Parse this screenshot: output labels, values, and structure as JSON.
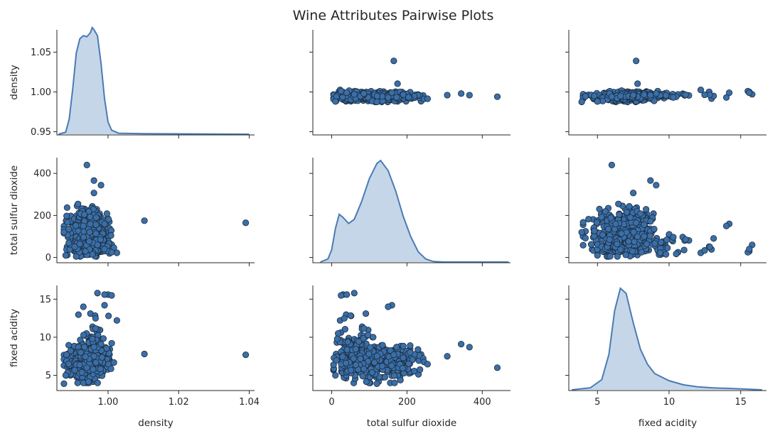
{
  "chart_data": {
    "type": "scatter",
    "title": "Wine Attributes Pairwise Plots",
    "variables": [
      "density",
      "total sulfur dioxide",
      "fixed acidity"
    ],
    "axis_labels": {
      "density": "density",
      "total sulfur dioxide": "total sulfur dioxide",
      "fixed acidity": "fixed acidity"
    },
    "ranges": {
      "density": [
        0.9855,
        1.0415
      ],
      "total sulfur dioxide": [
        -50,
        475
      ],
      "fixed acidity": [
        3.0,
        16.8
      ]
    },
    "x_ticks": {
      "density": [
        1.0,
        1.02,
        1.04
      ],
      "total sulfur dioxide": [
        0,
        200,
        400
      ],
      "fixed acidity": [
        5,
        10,
        15
      ]
    },
    "x_tick_labels": {
      "density": [
        "1.00",
        "1.02",
        "1.04"
      ],
      "total sulfur dioxide": [
        "0",
        "200",
        "400"
      ],
      "fixed acidity": [
        "5",
        "10",
        "15"
      ]
    },
    "y_ticks": {
      "density": [
        0.95,
        1.0,
        1.05
      ],
      "total sulfur dioxide": [
        0,
        200,
        400
      ],
      "fixed acidity": [
        5,
        10,
        15
      ]
    },
    "y_tick_labels": {
      "density": [
        "0.95",
        "1.00",
        "1.05"
      ],
      "total sulfur dioxide": [
        "0",
        "200",
        "400"
      ],
      "fixed acidity": [
        "5",
        "10",
        "15"
      ]
    },
    "y_limits": {
      "density": [
        0.946,
        1.078
      ],
      "total sulfur dioxide": [
        -25,
        475
      ],
      "fixed acidity": [
        3.0,
        16.8
      ]
    },
    "diag_kde": {
      "density": [
        [
          0.986,
          0.0
        ],
        [
          0.988,
          0.02
        ],
        [
          0.989,
          0.15
        ],
        [
          0.99,
          0.45
        ],
        [
          0.991,
          0.8
        ],
        [
          0.992,
          0.94
        ],
        [
          0.993,
          0.97
        ],
        [
          0.994,
          0.96
        ],
        [
          0.995,
          1.0
        ],
        [
          0.9955,
          1.05
        ],
        [
          0.996,
          1.03
        ],
        [
          0.997,
          0.97
        ],
        [
          0.998,
          0.7
        ],
        [
          0.999,
          0.35
        ],
        [
          1.0,
          0.12
        ],
        [
          1.001,
          0.04
        ],
        [
          1.003,
          0.01
        ],
        [
          1.01,
          0.005
        ],
        [
          1.04,
          0.0
        ]
      ],
      "total sulfur dioxide": [
        [
          -30,
          0.0
        ],
        [
          -10,
          0.03
        ],
        [
          0,
          0.12
        ],
        [
          10,
          0.33
        ],
        [
          20,
          0.47
        ],
        [
          30,
          0.44
        ],
        [
          45,
          0.38
        ],
        [
          60,
          0.42
        ],
        [
          80,
          0.6
        ],
        [
          100,
          0.82
        ],
        [
          120,
          0.97
        ],
        [
          130,
          1.0
        ],
        [
          150,
          0.9
        ],
        [
          170,
          0.7
        ],
        [
          190,
          0.45
        ],
        [
          210,
          0.25
        ],
        [
          230,
          0.1
        ],
        [
          250,
          0.03
        ],
        [
          270,
          0.005
        ],
        [
          300,
          0.0
        ],
        [
          470,
          0.0
        ]
      ],
      "fixed acidity": [
        [
          3.2,
          0.0
        ],
        [
          4.5,
          0.02
        ],
        [
          5.3,
          0.1
        ],
        [
          5.8,
          0.35
        ],
        [
          6.2,
          0.78
        ],
        [
          6.6,
          1.0
        ],
        [
          7.0,
          0.95
        ],
        [
          7.5,
          0.66
        ],
        [
          8.0,
          0.4
        ],
        [
          8.5,
          0.25
        ],
        [
          9.0,
          0.16
        ],
        [
          10.0,
          0.09
        ],
        [
          11.0,
          0.05
        ],
        [
          12.0,
          0.03
        ],
        [
          13.0,
          0.02
        ],
        [
          15.0,
          0.01
        ],
        [
          16.5,
          0.0
        ]
      ]
    },
    "notable_points": [
      {
        "density": 1.0103,
        "total sulfur dioxide": 175,
        "fixed acidity": 7.8
      },
      {
        "density": 1.039,
        "total sulfur dioxide": 165,
        "fixed acidity": 7.7
      },
      {
        "density": 0.994,
        "total sulfur dioxide": 440,
        "fixed acidity": 6.0
      },
      {
        "density": 0.996,
        "total sulfur dioxide": 366,
        "fixed acidity": 8.7
      },
      {
        "density": 0.998,
        "total sulfur dioxide": 344,
        "fixed acidity": 9.1
      },
      {
        "density": 0.996,
        "total sulfur dioxide": 307,
        "fixed acidity": 7.5
      },
      {
        "density": 0.999,
        "total sulfur dioxide": 160,
        "fixed acidity": 14.2
      },
      {
        "density": 0.993,
        "total sulfur dioxide": 150,
        "fixed acidity": 14.0
      },
      {
        "density": 1.0,
        "total sulfur dioxide": 30,
        "fixed acidity": 15.6
      },
      {
        "density": 1.001,
        "total sulfur dioxide": 25,
        "fixed acidity": 15.5
      },
      {
        "density": 0.997,
        "total sulfur dioxide": 60,
        "fixed acidity": 15.8
      },
      {
        "density": 0.999,
        "total sulfur dioxide": 40,
        "fixed acidity": 15.6
      },
      {
        "density": 0.988,
        "total sulfur dioxide": 10,
        "fixed acidity": 5.0
      },
      {
        "density": 0.9875,
        "total sulfur dioxide": 120,
        "fixed acidity": 3.9
      }
    ],
    "scatter_color": "#3a6fa8",
    "scatter_edge_color": "#1c2b3d",
    "kde_color": "#4a7bb5",
    "kde_fill": "#c5d6e8",
    "grid": false
  }
}
